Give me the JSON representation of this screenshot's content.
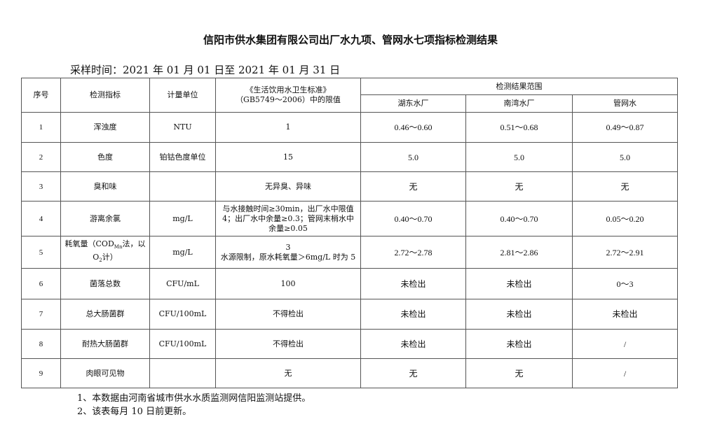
{
  "title": "信阳市供水集团有限公司出厂水九项、管网水七项指标检测结果",
  "sampling": "采样时间：2021 年 01 月 01 日至 2021 年 01 月 31 日",
  "headers": {
    "no": "序号",
    "item": "检测指标",
    "unit": "计量单位",
    "limit_1": "《生活饮用水卫生标准》",
    "limit_2": "（GB5749～2006）中的限值",
    "range": "检测结果范围",
    "plant1": "湖东水厂",
    "plant2": "南湾水厂",
    "pipe": "管网水"
  },
  "rows": [
    {
      "no": "1",
      "item": "浑浊度",
      "unit": "NTU",
      "limit": "1",
      "p1": "0.46～0.60",
      "p2": "0.51～0.68",
      "pipe": "0.49～0.87"
    },
    {
      "no": "2",
      "item": "色度",
      "unit": "铂钴色度单位",
      "limit": "15",
      "p1": "5.0",
      "p2": "5.0",
      "pipe": "5.0"
    },
    {
      "no": "3",
      "item": "臭和味",
      "unit": "",
      "limit": "无异臭、异味",
      "p1": "无",
      "p2": "无",
      "pipe": "无"
    },
    {
      "no": "4",
      "item": "游离余氯",
      "unit": "mg/L",
      "limit": "与水接触时间≥30min，出厂水中限值 4；出厂水中余量≥0.3；管网末梢水中余量≥0.05",
      "p1": "0.40～0.70",
      "p2": "0.40～0.70",
      "pipe": "0.05～0.20"
    },
    {
      "no": "5",
      "item": "耗氧量（COD",
      "unit": "mg/L",
      "limit": "3",
      "p1": "2.72～2.78",
      "p2": "2.81～2.86",
      "pipe": "2.72～2.91"
    },
    {
      "no": "6",
      "item": "菌落总数",
      "unit": "CFU/mL",
      "limit": "100",
      "p1": "未检出",
      "p2": "未检出",
      "pipe": "0～3"
    },
    {
      "no": "7",
      "item": "总大肠菌群",
      "unit": "CFU/100mL",
      "limit": "不得检出",
      "p1": "未检出",
      "p2": "未检出",
      "pipe": "未检出"
    },
    {
      "no": "8",
      "item": "耐热大肠菌群",
      "unit": "CFU/100mL",
      "limit": "不得检出",
      "p1": "未检出",
      "p2": "未检出",
      "pipe": "/"
    },
    {
      "no": "9",
      "item": "肉眼可见物",
      "unit": "",
      "limit": "无",
      "p1": "无",
      "p2": "无",
      "pipe": "/"
    }
  ],
  "row5_item_parts": {
    "sub1": "Mn",
    "mid": "法，以 O",
    "sub2": "2",
    "end": "计）"
  },
  "row5_limit_2": "水源限制，原水耗氧量＞6mg/L 时为 5",
  "notes": [
    "1、本数据由河南省城市供水水质监测网信阳监测站提供。",
    "2、该表每月 10 日前更新。"
  ]
}
